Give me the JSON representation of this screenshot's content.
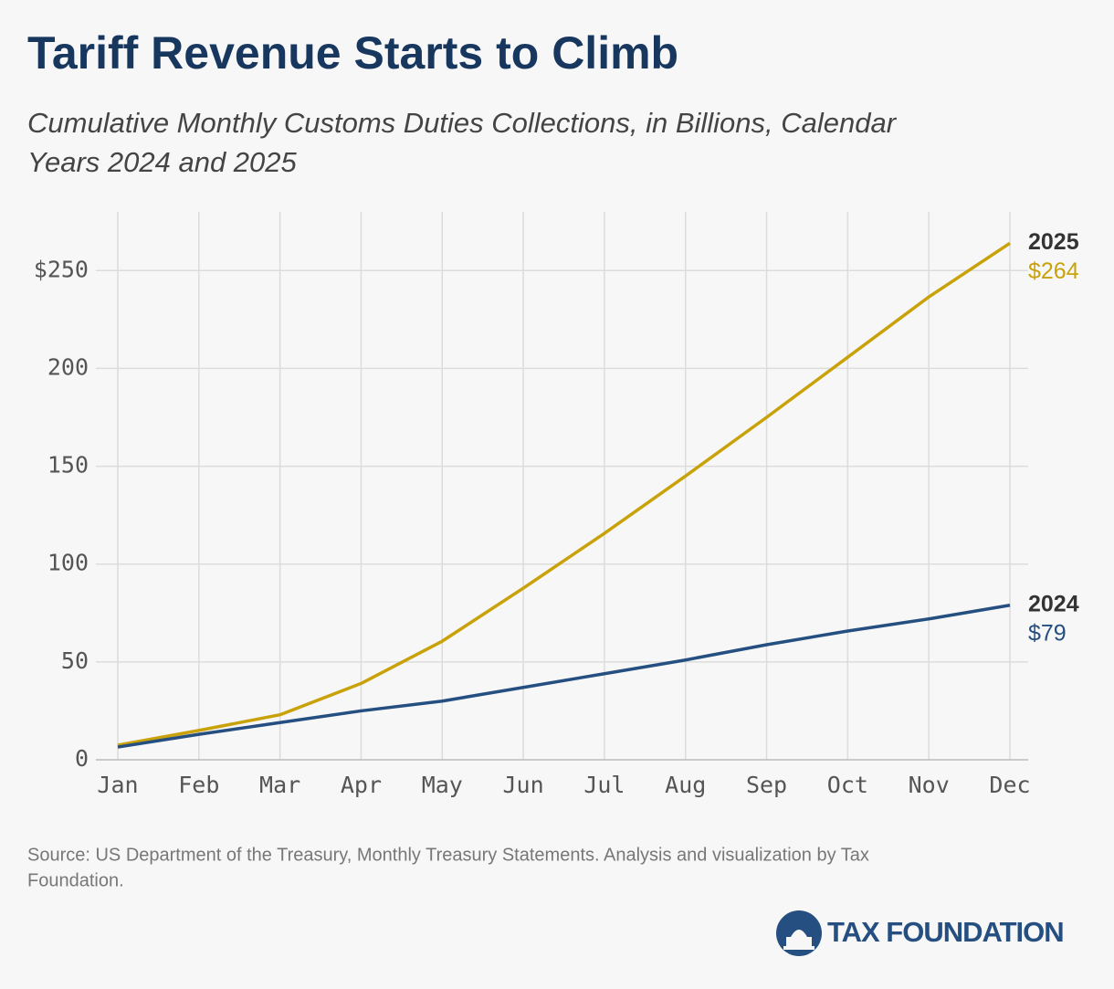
{
  "chart_data": {
    "type": "line",
    "title": "Tariff Revenue Starts to Climb",
    "subtitle": [
      "Cumulative Monthly Customs Duties Collections, in Billions, Calendar",
      "Years 2024 and 2025"
    ],
    "categories": [
      "Jan",
      "Feb",
      "Mar",
      "Apr",
      "May",
      "Jun",
      "Jul",
      "Aug",
      "Sep",
      "Oct",
      "Nov",
      "Dec"
    ],
    "series": [
      {
        "name": "2025",
        "color": "#c9a20a",
        "values": [
          7.5,
          15,
          23,
          39,
          60.6,
          87.7,
          115.7,
          145,
          175,
          205.7,
          236.5,
          264
        ],
        "value_labels": [
          null,
          null,
          null,
          null,
          null,
          null,
          null,
          null,
          null,
          null,
          null,
          "$264"
        ]
      },
      {
        "name": "2024",
        "color": "#254f80",
        "values": [
          6.5,
          13,
          19,
          25,
          30,
          37,
          44,
          51,
          58.8,
          65.8,
          72,
          79
        ],
        "value_labels": [
          null,
          null,
          null,
          null,
          null,
          null,
          null,
          null,
          null,
          null,
          null,
          "$79"
        ]
      }
    ],
    "ylim": [
      0,
      280
    ],
    "yticks": [
      0,
      50,
      100,
      150,
      200,
      {
        "value": 250,
        "label": "$250"
      }
    ],
    "grid": true,
    "source": [
      "Source: US Department of the Treasury, Monthly Treasury Statements. Analysis and visualization by Tax",
      "Foundation."
    ],
    "logo": "TAX FOUNDATION"
  }
}
